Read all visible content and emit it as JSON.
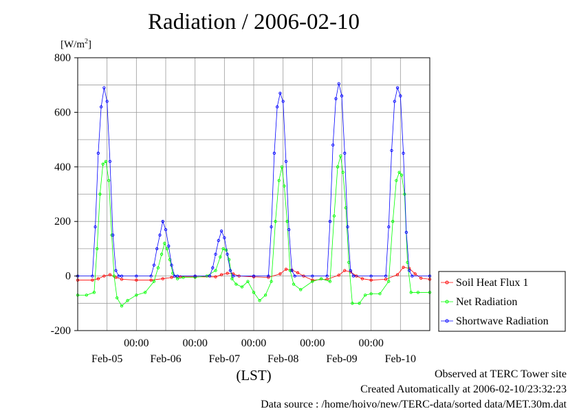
{
  "chart_data": {
    "type": "line",
    "title": "Radiation / 2006-02-10",
    "ylabel_prefix": "[W/m",
    "ylabel_sup": "2",
    "ylabel_suffix": "]",
    "xlabel": "(LST)",
    "ylim": [
      -200,
      800
    ],
    "xlim_days": [
      0,
      6
    ],
    "y_ticks": [
      -200,
      0,
      200,
      400,
      600,
      800
    ],
    "y_tick_labels": [
      "-200",
      "0",
      "200",
      "400",
      "600",
      "800"
    ],
    "x_ticks": [
      {
        "pos": 1.0,
        "time": "00:00",
        "date": "Feb-05"
      },
      {
        "pos": 2.0,
        "time": "00:00",
        "date": "Feb-06"
      },
      {
        "pos": 3.0,
        "time": "00:00",
        "date": "Feb-07"
      },
      {
        "pos": 4.0,
        "time": "00:00",
        "date": "Feb-08"
      },
      {
        "pos": 5.0,
        "time": "00:00",
        "date": "Feb-09"
      },
      {
        "pos": 6.0,
        "time": "",
        "date": "Feb-10"
      }
    ],
    "legend_position": "right",
    "series": [
      {
        "name": "Soil Heat Flux 1",
        "color": "#ff0000",
        "x": [
          0.0,
          0.25,
          0.35,
          0.45,
          0.55,
          0.65,
          0.75,
          1.0,
          1.25,
          1.45,
          1.6,
          1.75,
          2.0,
          2.35,
          2.45,
          2.55,
          2.65,
          2.75,
          3.0,
          3.25,
          3.45,
          3.55,
          3.65,
          3.75,
          3.85,
          4.0,
          4.25,
          4.45,
          4.55,
          4.65,
          4.75,
          4.85,
          5.0,
          5.25,
          5.45,
          5.55,
          5.65,
          5.75,
          5.85,
          6.0
        ],
        "y": [
          -15,
          -15,
          -10,
          0,
          5,
          -5,
          -12,
          -15,
          -15,
          -10,
          -5,
          -3,
          -3,
          -3,
          5,
          10,
          8,
          0,
          -3,
          -5,
          8,
          25,
          22,
          12,
          0,
          -15,
          -12,
          3,
          20,
          15,
          0,
          -10,
          -15,
          -12,
          5,
          32,
          28,
          8,
          -8,
          -12
        ]
      },
      {
        "name": "Net Radiation",
        "color": "#00ff00",
        "x": [
          0.0,
          0.15,
          0.28,
          0.33,
          0.38,
          0.43,
          0.48,
          0.53,
          0.58,
          0.62,
          0.67,
          0.75,
          0.85,
          1.0,
          1.15,
          1.3,
          1.37,
          1.43,
          1.48,
          1.52,
          1.57,
          1.62,
          1.7,
          1.8,
          2.0,
          2.2,
          2.35,
          2.43,
          2.48,
          2.53,
          2.58,
          2.63,
          2.7,
          2.8,
          2.9,
          3.0,
          3.1,
          3.2,
          3.3,
          3.37,
          3.43,
          3.48,
          3.52,
          3.57,
          3.62,
          3.68,
          3.8,
          4.0,
          4.15,
          4.3,
          4.37,
          4.43,
          4.48,
          4.52,
          4.57,
          4.62,
          4.68,
          4.8,
          4.9,
          5.0,
          5.15,
          5.3,
          5.37,
          5.43,
          5.48,
          5.52,
          5.57,
          5.62,
          5.68,
          5.8,
          6.0
        ],
        "y": [
          -70,
          -70,
          -60,
          100,
          300,
          410,
          420,
          350,
          150,
          0,
          -80,
          -110,
          -90,
          -70,
          -60,
          -20,
          30,
          80,
          120,
          100,
          60,
          10,
          -10,
          -5,
          -5,
          0,
          20,
          70,
          100,
          95,
          60,
          -10,
          -30,
          -40,
          -20,
          -60,
          -90,
          -70,
          -20,
          200,
          350,
          400,
          330,
          200,
          20,
          -30,
          -50,
          -20,
          -10,
          -20,
          220,
          400,
          440,
          380,
          250,
          50,
          -100,
          -100,
          -70,
          -65,
          -65,
          -20,
          200,
          350,
          380,
          370,
          300,
          50,
          -60,
          -60,
          -60
        ]
      },
      {
        "name": "Shortwave Radiation",
        "color": "#0000ff",
        "x": [
          0.0,
          0.25,
          0.3,
          0.35,
          0.4,
          0.45,
          0.5,
          0.55,
          0.6,
          0.65,
          0.7,
          0.75,
          1.0,
          1.25,
          1.3,
          1.35,
          1.4,
          1.45,
          1.5,
          1.55,
          1.6,
          1.65,
          1.7,
          2.0,
          2.25,
          2.3,
          2.35,
          2.4,
          2.45,
          2.5,
          2.55,
          2.6,
          2.65,
          3.0,
          3.25,
          3.3,
          3.35,
          3.4,
          3.45,
          3.5,
          3.55,
          3.6,
          3.65,
          3.7,
          4.0,
          4.25,
          4.3,
          4.35,
          4.4,
          4.45,
          4.5,
          4.55,
          4.6,
          4.65,
          4.7,
          5.0,
          5.25,
          5.3,
          5.35,
          5.4,
          5.45,
          5.5,
          5.55,
          5.6,
          5.65,
          5.7,
          6.0
        ],
        "y": [
          0,
          0,
          180,
          450,
          620,
          690,
          640,
          420,
          150,
          20,
          0,
          0,
          0,
          0,
          40,
          100,
          150,
          200,
          170,
          110,
          40,
          0,
          0,
          0,
          0,
          30,
          80,
          130,
          165,
          140,
          80,
          20,
          0,
          0,
          0,
          180,
          450,
          620,
          670,
          640,
          420,
          170,
          20,
          0,
          0,
          0,
          200,
          480,
          650,
          705,
          660,
          450,
          180,
          20,
          0,
          0,
          0,
          180,
          460,
          640,
          690,
          660,
          450,
          160,
          20,
          0,
          0
        ]
      }
    ]
  },
  "footer": {
    "observed": "Observed at TERC Tower site",
    "created": "Created Automatically at 2006-02-10/23:32:23",
    "source": "Data source : /home/hoivo/new/TERC-data/sorted  data/MET.30m.dat"
  }
}
